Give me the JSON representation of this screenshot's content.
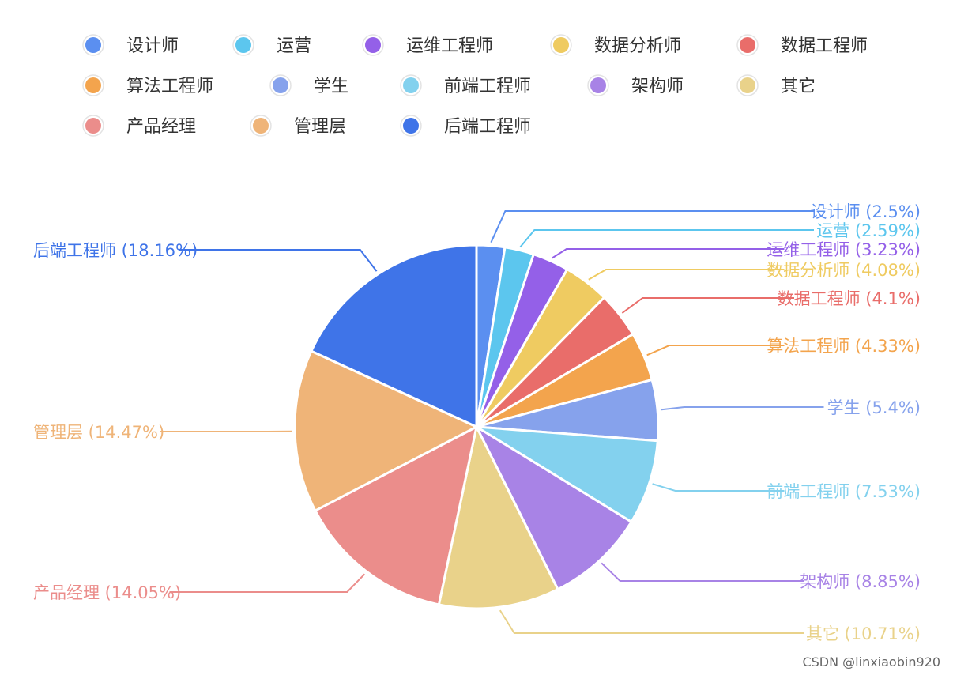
{
  "chart_data": {
    "type": "pie",
    "title": "",
    "legend_position": "top",
    "slices": [
      {
        "name": "设计师",
        "percent": 2.5,
        "label": "设计师 (2.5%)",
        "color": "#5b8ff0",
        "legend_color": "#5b8ff0"
      },
      {
        "name": "运营",
        "percent": 2.59,
        "label": "运营 (2.59%)",
        "color": "#5cc6ee",
        "legend_color": "#5cc6ee"
      },
      {
        "name": "运维工程师",
        "percent": 3.23,
        "label": "运维工程师 (3.23%)",
        "color": "#9460e8",
        "legend_color": "#9460e8"
      },
      {
        "name": "数据分析师",
        "percent": 4.08,
        "label": "数据分析师 (4.08%)",
        "color": "#efcb61",
        "legend_color": "#efcb61"
      },
      {
        "name": "数据工程师",
        "percent": 4.1,
        "label": "数据工程师 (4.1%)",
        "color": "#e96d6a",
        "legend_color": "#e96d6a"
      },
      {
        "name": "算法工程师",
        "percent": 4.33,
        "label": "算法工程师 (4.33%)",
        "color": "#f3a44d",
        "legend_color": "#f3a44d"
      },
      {
        "name": "学生",
        "percent": 5.4,
        "label": "学生 (5.4%)",
        "color": "#86a2ec",
        "legend_color": "#86a2ec"
      },
      {
        "name": "前端工程师",
        "percent": 7.53,
        "label": "前端工程师 (7.53%)",
        "color": "#83d1ee",
        "legend_color": "#83d1ee"
      },
      {
        "name": "架构师",
        "percent": 8.85,
        "label": "架构师 (8.85%)",
        "color": "#a883e6",
        "legend_color": "#a883e6"
      },
      {
        "name": "其它",
        "percent": 10.71,
        "label": "其它 (10.71%)",
        "color": "#e9d28a",
        "legend_color": "#e9d28a"
      },
      {
        "name": "产品经理",
        "percent": 14.05,
        "label": "产品经理 (14.05%)",
        "color": "#eb8d8b",
        "legend_color": "#eb8d8b"
      },
      {
        "name": "管理层",
        "percent": 14.47,
        "label": "管理层 (14.47%)",
        "color": "#efb478",
        "legend_color": "#efb478"
      },
      {
        "name": "后端工程师",
        "percent": 18.16,
        "label": "后端工程师 (18.16%)",
        "color": "#3f74e8",
        "legend_color": "#3f74e8"
      }
    ]
  },
  "legend": {
    "items": [
      "设计师",
      "运营",
      "运维工程师",
      "数据分析师",
      "数据工程师",
      "算法工程师",
      "学生",
      "前端工程师",
      "架构师",
      "其它",
      "产品经理",
      "管理层",
      "后端工程师"
    ]
  },
  "watermark": "CSDN @linxiaobin920"
}
